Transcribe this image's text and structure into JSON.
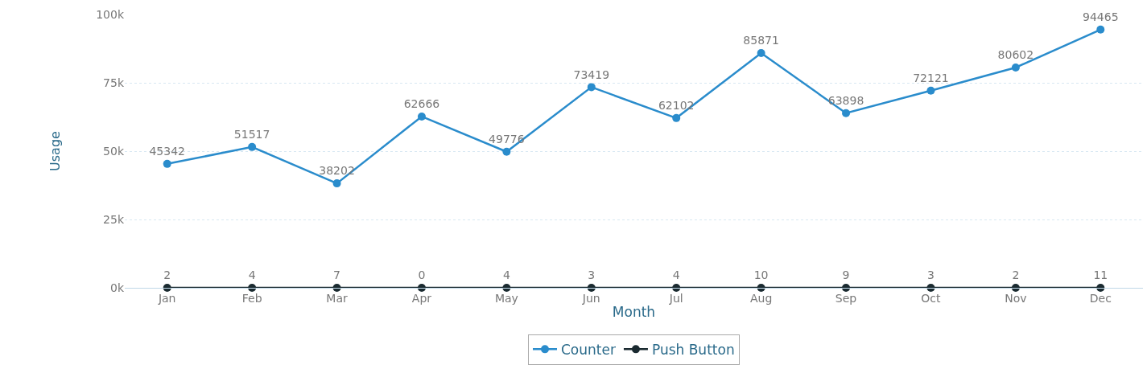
{
  "chart_data": {
    "type": "line",
    "xlabel": "Month",
    "ylabel": "Usage",
    "categories": [
      "Jan",
      "Feb",
      "Mar",
      "Apr",
      "May",
      "Jun",
      "Jul",
      "Aug",
      "Sep",
      "Oct",
      "Nov",
      "Dec"
    ],
    "series": [
      {
        "name": "Counter",
        "color": "#2a8ccc",
        "values": [
          45342,
          51517,
          38202,
          62666,
          49776,
          73419,
          62102,
          85871,
          63898,
          72121,
          80602,
          94465
        ]
      },
      {
        "name": "Push Button",
        "color": "#1a2a30",
        "values": [
          2,
          4,
          7,
          0,
          4,
          3,
          4,
          10,
          9,
          3,
          2,
          11
        ]
      }
    ],
    "ylim": [
      0,
      100000
    ],
    "yticks": [
      {
        "value": 0,
        "label": "0k"
      },
      {
        "value": 25000,
        "label": "25k"
      },
      {
        "value": 50000,
        "label": "50k"
      },
      {
        "value": 75000,
        "label": "75k"
      },
      {
        "value": 100000,
        "label": "100k"
      }
    ],
    "grid": "y",
    "legend": "bottom",
    "marker": "circle",
    "line_style": "solid",
    "data_labels": true
  }
}
